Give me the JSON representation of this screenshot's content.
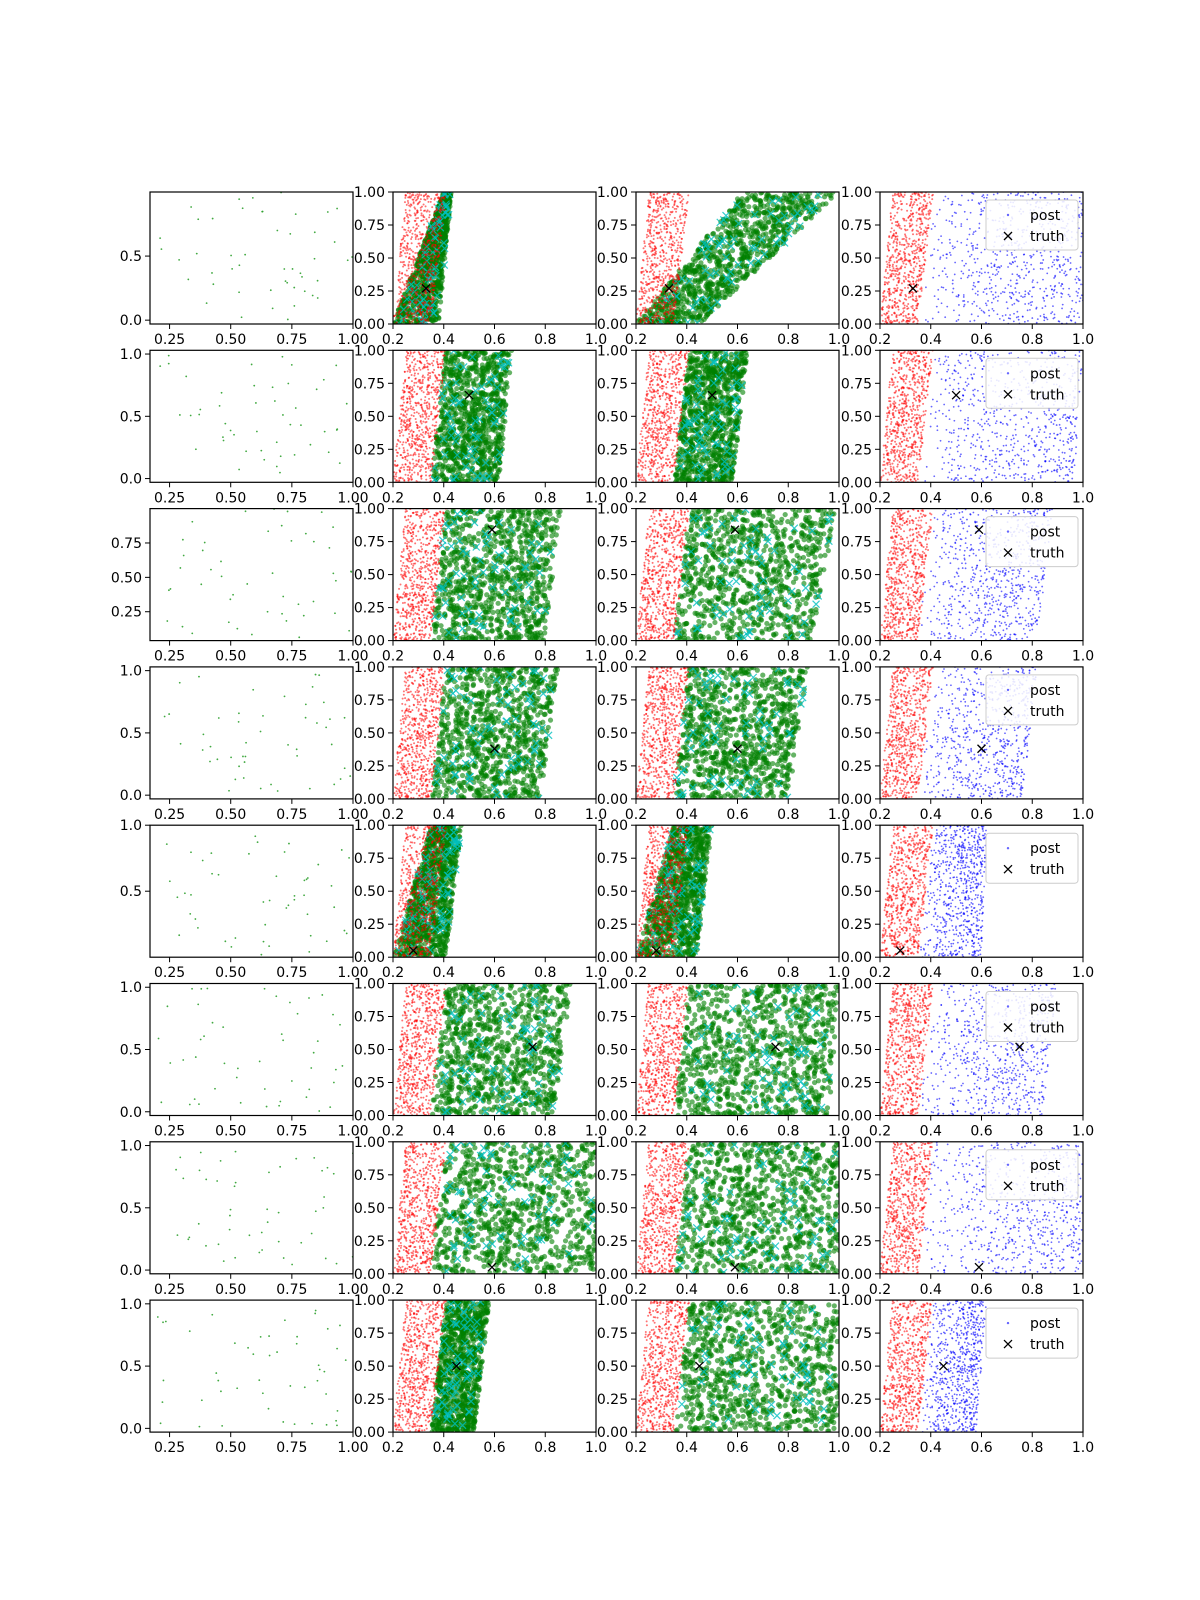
{
  "figure": {
    "rows": 8,
    "columns": 4,
    "colors": {
      "light_green": "#2ca02c",
      "green": "#008000",
      "red": "#ff0000",
      "cyan": "#00bfbf",
      "blue": "#0000ff",
      "truth": "#000000"
    }
  },
  "chart_data": {
    "type": "scatter",
    "legend": {
      "entries": [
        "post",
        "truth"
      ],
      "placement": "upper-right",
      "column": 4
    },
    "column_xlim": [
      [
        0.17,
        1.0
      ],
      [
        0.2,
        1.0
      ],
      [
        0.2,
        1.0
      ],
      [
        0.2,
        1.0
      ]
    ],
    "column_x_ticks": [
      [
        "0.25",
        "0.50",
        "0.75",
        "1.00"
      ],
      [
        "0.2",
        "0.4",
        "0.6",
        "0.8",
        "1.0"
      ],
      [
        "0.2",
        "0.4",
        "0.6",
        "0.8",
        "1.0"
      ],
      [
        "0.2",
        "0.4",
        "0.6",
        "0.8",
        "1.0"
      ]
    ],
    "column_y_ticks": [
      "0.00",
      "0.25",
      "0.50",
      "0.75",
      "1.00"
    ],
    "column1_y_ticks": [
      [
        "0.0",
        "0.5"
      ],
      [
        "0.0",
        "0.5",
        "1.0"
      ],
      [
        "0.25",
        "0.50",
        "0.75"
      ],
      [
        "0.0",
        "0.5",
        "1.0"
      ],
      [
        "0.5",
        "1.0"
      ],
      [
        "0.0",
        "0.5",
        "1.0"
      ],
      [
        "0.0",
        "0.5",
        "1.0"
      ],
      [
        "0.0",
        "0.5",
        "1.0"
      ]
    ],
    "column1_ylim": [
      [
        -0.03,
        1.0
      ],
      [
        -0.03,
        1.03
      ],
      [
        0.04,
        1.0
      ],
      [
        -0.03,
        1.03
      ],
      [
        0.0,
        1.0
      ],
      [
        -0.03,
        1.03
      ],
      [
        -0.03,
        1.03
      ],
      [
        -0.03,
        1.03
      ]
    ],
    "column_ylim": [
      0.0,
      1.0
    ],
    "truth": [
      {
        "x": 0.33,
        "y": 0.27
      },
      {
        "x": 0.5,
        "y": 0.66
      },
      {
        "x": 0.59,
        "y": 0.84
      },
      {
        "x": 0.6,
        "y": 0.38
      },
      {
        "x": 0.28,
        "y": 0.05
      },
      {
        "x": 0.75,
        "y": 0.52
      },
      {
        "x": 0.59,
        "y": 0.05
      },
      {
        "x": 0.45,
        "y": 0.5
      }
    ],
    "red_region": {
      "x_at_y0": [
        0.2,
        0.35
      ],
      "x_at_y1": [
        0.25,
        0.41
      ]
    },
    "posterior_regions": [
      {
        "col2": [
          0.2,
          0.38,
          0.4,
          0.43
        ],
        "col3": [
          0.2,
          0.45,
          0.62,
          1.0
        ],
        "col4": [
          0.35,
          1.0,
          0.41,
          1.0
        ]
      },
      {
        "col2": [
          0.35,
          0.62,
          0.41,
          0.67
        ],
        "col3": [
          0.35,
          0.58,
          0.41,
          0.64
        ],
        "col4": [
          0.35,
          0.97,
          0.41,
          1.0
        ]
      },
      {
        "col2": [
          0.35,
          0.8,
          0.41,
          0.86
        ],
        "col3": [
          0.35,
          0.89,
          0.41,
          0.99
        ],
        "col4": [
          0.35,
          0.82,
          0.41,
          0.88
        ]
      },
      {
        "col2": [
          0.35,
          0.78,
          0.41,
          0.85
        ],
        "col3": [
          0.35,
          0.8,
          0.41,
          0.88
        ],
        "col4": [
          0.35,
          0.76,
          0.41,
          0.82
        ]
      },
      {
        "col2": [
          0.2,
          0.41,
          0.35,
          0.47
        ],
        "col3": [
          0.2,
          0.44,
          0.35,
          0.5
        ],
        "col4": [
          0.35,
          0.6,
          0.41,
          0.62
        ]
      },
      {
        "col2": [
          0.35,
          0.84,
          0.41,
          0.9
        ],
        "col3": [
          0.35,
          0.96,
          0.41,
          1.0
        ],
        "col4": [
          0.35,
          0.84,
          0.41,
          0.9
        ]
      },
      {
        "col2": [
          0.35,
          1.0,
          0.41,
          1.0
        ],
        "col3": [
          0.35,
          1.0,
          0.41,
          1.0
        ],
        "col4": [
          0.35,
          1.0,
          0.41,
          1.0
        ]
      },
      {
        "col2": [
          0.35,
          0.52,
          0.41,
          0.58
        ],
        "col3": [
          0.35,
          1.0,
          0.41,
          1.0
        ],
        "col4": [
          0.35,
          0.58,
          0.41,
          0.62
        ]
      }
    ]
  }
}
